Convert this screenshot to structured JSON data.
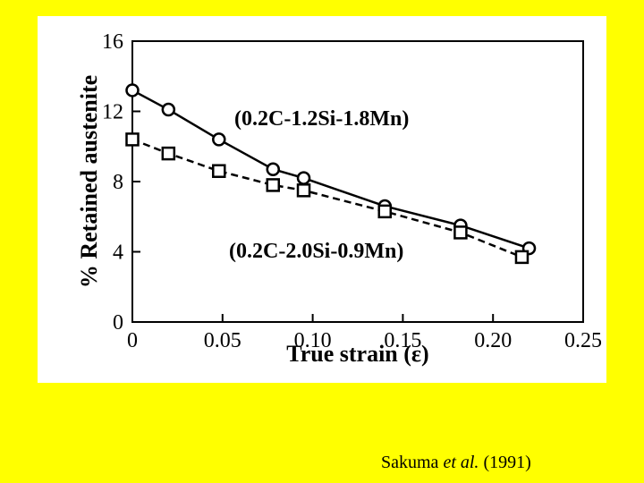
{
  "chart_data": {
    "type": "line",
    "xlabel": "True strain (ε)",
    "ylabel": "% Retained austenite",
    "xlim": [
      0,
      0.25
    ],
    "ylim": [
      0,
      16
    ],
    "x_ticks": [
      0,
      0.05,
      0.1,
      0.15,
      0.2,
      0.25
    ],
    "x_tick_labels": [
      "0",
      "0.05",
      "0.10",
      "0.15",
      "0.20",
      "0.25"
    ],
    "y_ticks": [
      0,
      4,
      8,
      12,
      16
    ],
    "y_tick_labels": [
      "0",
      "4",
      "8",
      "12",
      "16"
    ],
    "grid": false,
    "series": [
      {
        "name": "(0.2C-1.2Si-1.8Mn)",
        "marker": "circle",
        "line": "solid",
        "x": [
          0.0,
          0.02,
          0.048,
          0.078,
          0.095,
          0.14,
          0.182,
          0.22
        ],
        "y": [
          13.2,
          12.1,
          10.4,
          8.7,
          8.2,
          6.6,
          5.5,
          4.2
        ]
      },
      {
        "name": "(0.2C-2.0Si-0.9Mn)",
        "marker": "square",
        "line": "dashed",
        "x": [
          0.0,
          0.02,
          0.048,
          0.078,
          0.095,
          0.14,
          0.182,
          0.216
        ],
        "y": [
          10.4,
          9.6,
          8.6,
          7.8,
          7.5,
          6.3,
          5.1,
          3.7
        ]
      }
    ]
  },
  "citation": {
    "author": "Sakuma",
    "etal": "et al.",
    "year": "(1991)"
  }
}
